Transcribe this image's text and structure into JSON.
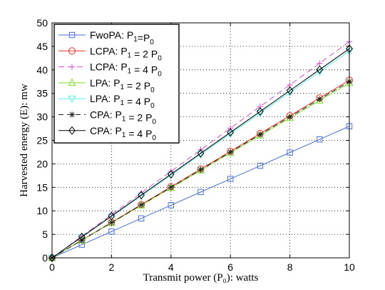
{
  "chart_data": {
    "type": "line",
    "xlabel": "Transmit power (P₀): watts",
    "ylabel": "Harvested energy (E): mw",
    "xlim": [
      0,
      10
    ],
    "ylim": [
      0,
      50
    ],
    "xticks": [
      0,
      2,
      4,
      6,
      8,
      10
    ],
    "yticks": [
      0,
      5,
      10,
      15,
      20,
      25,
      30,
      35,
      40,
      45,
      50
    ],
    "grid": true,
    "legend_position": "top-left",
    "x": [
      0,
      1,
      2,
      3,
      4,
      5,
      6,
      7,
      8,
      9,
      10
    ],
    "series": [
      {
        "name": "FwoPA: P1=P0",
        "legend": {
          "a": "FwoPA: P",
          "s1": "1",
          "b": "=P",
          "s2": "0",
          "c": ""
        },
        "color": "#4a6fd8",
        "dash": "",
        "marker": "square",
        "values": [
          0,
          2.8,
          5.6,
          8.4,
          11.2,
          14.0,
          16.8,
          19.6,
          22.4,
          25.2,
          28.0
        ]
      },
      {
        "name": "LCPA: P1 = 2 P0",
        "legend": {
          "a": "LCPA: P",
          "s1": "1",
          "b": " = 2 P",
          "s2": "0",
          "c": ""
        },
        "color": "#e8312b",
        "dash": "",
        "marker": "circle",
        "values": [
          0,
          3.78,
          7.56,
          11.34,
          15.12,
          18.9,
          22.68,
          26.46,
          30.24,
          34.02,
          37.8
        ]
      },
      {
        "name": "LCPA: P1 = 4 P0",
        "legend": {
          "a": "LCPA: P",
          "s1": "1",
          "b": " = 4 P",
          "s2": "0",
          "c": ""
        },
        "color": "#d64fc8",
        "dash": "8,5",
        "marker": "plus",
        "values": [
          0,
          4.6,
          9.2,
          13.8,
          18.4,
          23.0,
          27.6,
          32.2,
          36.8,
          41.4,
          46.0
        ]
      },
      {
        "name": "LPA: P1 = 2 P0",
        "legend": {
          "a": "LPA: P",
          "s1": "1",
          "b": " = 2 P",
          "s2": "0",
          "c": ""
        },
        "color": "#7fdc2a",
        "dash": "",
        "marker": "triangle-up",
        "values": [
          0,
          3.72,
          7.44,
          11.16,
          14.88,
          18.6,
          22.32,
          26.04,
          29.76,
          33.48,
          37.2
        ]
      },
      {
        "name": "LPA: P1 = 4 P0",
        "legend": {
          "a": "LPA: P",
          "s1": "1",
          "b": " = 4 P",
          "s2": "0",
          "c": ""
        },
        "color": "#5ff0e8",
        "dash": "",
        "marker": "triangle-down",
        "values": [
          0,
          4.4,
          8.8,
          13.2,
          17.6,
          22.0,
          26.4,
          30.8,
          35.2,
          39.6,
          44.0
        ]
      },
      {
        "name": "CPA: P1 = 2 P0",
        "legend": {
          "a": "CPA: P",
          "s1": "1",
          "b": " = 2 P",
          "s2": "0",
          "c": ""
        },
        "color": "#222222",
        "dash": "7,5",
        "marker": "asterisk",
        "values": [
          0,
          3.75,
          7.5,
          11.25,
          15.0,
          18.75,
          22.5,
          26.25,
          30.0,
          33.75,
          37.5
        ]
      },
      {
        "name": "CPA: P1 = 4 P0",
        "legend": {
          "a": "CPA: P",
          "s1": "1",
          "b": " = 4 P",
          "s2": "0",
          "c": ""
        },
        "color": "#000000",
        "dash": "",
        "marker": "diamond",
        "values": [
          0,
          4.45,
          8.9,
          13.35,
          17.8,
          22.25,
          26.7,
          31.15,
          35.6,
          40.05,
          44.5
        ]
      }
    ]
  }
}
